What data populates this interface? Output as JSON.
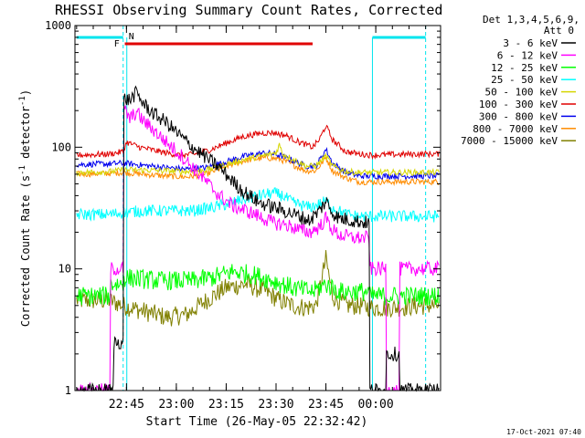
{
  "chart_data": {
    "type": "line",
    "title": "RHESSI Observing Summary Count Rates, Corrected",
    "xlabel": "Start Time (26-May-05 22:32:42)",
    "ylabel": "Corrected Count Rate (s^-1 detector^-1)",
    "ylabel_parts": [
      "Corrected Count Rate (s",
      "-1",
      " detector",
      "-1",
      ")"
    ],
    "y_scale": "log",
    "ylim": [
      1,
      1000
    ],
    "y_ticks": [
      {
        "value": 1,
        "label": "1"
      },
      {
        "value": 10,
        "label": "10"
      },
      {
        "value": 100,
        "label": "100"
      },
      {
        "value": 1000,
        "label": "1000"
      }
    ],
    "x_range_min": [
      -15.5,
      94.5
    ],
    "x_ticks": [
      {
        "value": 0,
        "label": "22:45"
      },
      {
        "value": 15,
        "label": "23:00"
      },
      {
        "value": 30,
        "label": "23:15"
      },
      {
        "value": 45,
        "label": "23:30"
      },
      {
        "value": 60,
        "label": "23:45"
      },
      {
        "value": 75,
        "label": "00:00"
      }
    ],
    "legend_header": [
      "Det 1,3,4,5,6,9,",
      "Att 0"
    ],
    "legend_position": "right",
    "markers": {
      "night_label": "N",
      "flare_label": "F",
      "night_color": "#00e5ee",
      "flare_color": "#e00000",
      "night_bars_min": [
        [
          -15,
          -1
        ],
        [
          74,
          90
        ]
      ],
      "night_dashed_lines_min": [
        -1,
        90
      ],
      "night_solid_lines_min": [
        -1,
        74
      ],
      "flare_bar_min": [
        -0.5,
        56
      ]
    },
    "timestamp": "17-Oct-2021 07:40",
    "series": [
      {
        "name": "3 - 6 keV",
        "color": "#000000",
        "points": [
          [
            -15,
            1
          ],
          [
            -4,
            1
          ],
          [
            -4,
            2.5
          ],
          [
            -1,
            2.5
          ],
          [
            -1,
            250
          ],
          [
            1,
            245
          ],
          [
            3,
            280
          ],
          [
            5,
            230
          ],
          [
            8,
            190
          ],
          [
            12,
            160
          ],
          [
            16,
            125
          ],
          [
            20,
            100
          ],
          [
            24,
            82
          ],
          [
            28,
            68
          ],
          [
            31,
            56
          ],
          [
            34,
            46
          ],
          [
            37,
            40
          ],
          [
            40,
            35
          ],
          [
            43,
            33
          ],
          [
            46,
            31
          ],
          [
            49,
            29
          ],
          [
            52,
            27
          ],
          [
            55,
            25
          ],
          [
            58,
            30
          ],
          [
            60,
            36
          ],
          [
            62,
            29
          ],
          [
            64,
            26
          ],
          [
            68,
            25
          ],
          [
            72,
            24
          ],
          [
            73,
            24
          ],
          [
            73,
            1
          ],
          [
            78,
            1
          ],
          [
            78,
            2
          ],
          [
            82,
            2
          ],
          [
            82,
            1
          ],
          [
            90,
            1
          ]
        ]
      },
      {
        "name": "6 - 12 keV",
        "color": "#ff00ff",
        "points": [
          [
            -15,
            1
          ],
          [
            -5,
            1
          ],
          [
            -5,
            10
          ],
          [
            -1,
            10
          ],
          [
            -1,
            210
          ],
          [
            1,
            170
          ],
          [
            3,
            195
          ],
          [
            5,
            165
          ],
          [
            8,
            140
          ],
          [
            12,
            110
          ],
          [
            16,
            88
          ],
          [
            20,
            68
          ],
          [
            24,
            52
          ],
          [
            28,
            40
          ],
          [
            32,
            33
          ],
          [
            36,
            30
          ],
          [
            40,
            27
          ],
          [
            44,
            24
          ],
          [
            48,
            23
          ],
          [
            52,
            21
          ],
          [
            55,
            20
          ],
          [
            58,
            22
          ],
          [
            60,
            26
          ],
          [
            62,
            21
          ],
          [
            64,
            19
          ],
          [
            68,
            18
          ],
          [
            72,
            18
          ],
          [
            73,
            18
          ],
          [
            73,
            10
          ],
          [
            78,
            10
          ],
          [
            78,
            1
          ],
          [
            82,
            1
          ],
          [
            82,
            10
          ],
          [
            90,
            10
          ]
        ]
      },
      {
        "name": "12 - 25 keV",
        "color": "#00ff00",
        "points": [
          [
            -15,
            6
          ],
          [
            -5,
            6
          ],
          [
            -5,
            7.5
          ],
          [
            -1,
            7.5
          ],
          [
            -1,
            8.5
          ],
          [
            10,
            8
          ],
          [
            20,
            8
          ],
          [
            26,
            8.5
          ],
          [
            32,
            9.5
          ],
          [
            38,
            9
          ],
          [
            44,
            8
          ],
          [
            50,
            7
          ],
          [
            56,
            6.5
          ],
          [
            60,
            7.5
          ],
          [
            64,
            6.5
          ],
          [
            70,
            6.5
          ],
          [
            73,
            6.5
          ],
          [
            73,
            6
          ],
          [
            82,
            6
          ],
          [
            90,
            6
          ]
        ]
      },
      {
        "name": "25 - 50 keV",
        "color": "#00ffff",
        "points": [
          [
            -15,
            28
          ],
          [
            -5,
            28
          ],
          [
            -1,
            29
          ],
          [
            5,
            30
          ],
          [
            12,
            30
          ],
          [
            20,
            30
          ],
          [
            26,
            32
          ],
          [
            32,
            35
          ],
          [
            36,
            38
          ],
          [
            40,
            40
          ],
          [
            44,
            42
          ],
          [
            47,
            40
          ],
          [
            50,
            35
          ],
          [
            55,
            32
          ],
          [
            58,
            34
          ],
          [
            60,
            36
          ],
          [
            62,
            32
          ],
          [
            66,
            28
          ],
          [
            70,
            27
          ],
          [
            74,
            27
          ],
          [
            80,
            27
          ],
          [
            90,
            27
          ]
        ]
      },
      {
        "name": "50 - 100 keV",
        "color": "#d6d600",
        "points": [
          [
            -15,
            62
          ],
          [
            -5,
            63
          ],
          [
            -1,
            65
          ],
          [
            5,
            65
          ],
          [
            12,
            64
          ],
          [
            18,
            63
          ],
          [
            24,
            65
          ],
          [
            30,
            72
          ],
          [
            36,
            80
          ],
          [
            42,
            86
          ],
          [
            45,
            90
          ],
          [
            46,
            105
          ],
          [
            47,
            88
          ],
          [
            50,
            80
          ],
          [
            54,
            70
          ],
          [
            57,
            70
          ],
          [
            60,
            85
          ],
          [
            62,
            70
          ],
          [
            66,
            63
          ],
          [
            70,
            62
          ],
          [
            74,
            62
          ],
          [
            80,
            62
          ],
          [
            90,
            62
          ]
        ]
      },
      {
        "name": "100 - 300 keV",
        "color": "#e00000",
        "points": [
          [
            -15,
            86
          ],
          [
            -5,
            88
          ],
          [
            -1,
            92
          ],
          [
            0,
            110
          ],
          [
            4,
            100
          ],
          [
            10,
            92
          ],
          [
            16,
            86
          ],
          [
            20,
            87
          ],
          [
            25,
            95
          ],
          [
            30,
            108
          ],
          [
            35,
            122
          ],
          [
            40,
            130
          ],
          [
            44,
            132
          ],
          [
            48,
            125
          ],
          [
            52,
            110
          ],
          [
            56,
            100
          ],
          [
            58,
            115
          ],
          [
            60,
            150
          ],
          [
            62,
            115
          ],
          [
            66,
            92
          ],
          [
            70,
            88
          ],
          [
            74,
            86
          ],
          [
            80,
            87
          ],
          [
            90,
            88
          ]
        ]
      },
      {
        "name": "300 - 800 keV",
        "color": "#0000ee",
        "points": [
          [
            -15,
            72
          ],
          [
            -5,
            73
          ],
          [
            -1,
            74
          ],
          [
            5,
            71
          ],
          [
            12,
            68
          ],
          [
            18,
            66
          ],
          [
            24,
            68
          ],
          [
            30,
            76
          ],
          [
            36,
            85
          ],
          [
            42,
            90
          ],
          [
            46,
            86
          ],
          [
            50,
            78
          ],
          [
            54,
            70
          ],
          [
            57,
            70
          ],
          [
            60,
            96
          ],
          [
            62,
            74
          ],
          [
            66,
            62
          ],
          [
            70,
            58
          ],
          [
            74,
            58
          ],
          [
            80,
            58
          ],
          [
            90,
            58
          ]
        ]
      },
      {
        "name": "800 - 7000 keV",
        "color": "#ff8c00",
        "points": [
          [
            -15,
            60
          ],
          [
            -5,
            61
          ],
          [
            -1,
            62
          ],
          [
            5,
            60
          ],
          [
            12,
            58
          ],
          [
            18,
            57
          ],
          [
            24,
            60
          ],
          [
            30,
            70
          ],
          [
            36,
            78
          ],
          [
            42,
            82
          ],
          [
            46,
            80
          ],
          [
            50,
            72
          ],
          [
            54,
            64
          ],
          [
            57,
            64
          ],
          [
            60,
            82
          ],
          [
            62,
            64
          ],
          [
            66,
            56
          ],
          [
            70,
            52
          ],
          [
            74,
            52
          ],
          [
            80,
            52
          ],
          [
            90,
            52
          ]
        ]
      },
      {
        "name": "7000 - 15000 keV",
        "color": "#808000",
        "points": [
          [
            -15,
            5.5
          ],
          [
            -5,
            5.5
          ],
          [
            -1,
            5
          ],
          [
            5,
            4.5
          ],
          [
            12,
            4
          ],
          [
            18,
            4.2
          ],
          [
            24,
            5.5
          ],
          [
            30,
            7
          ],
          [
            36,
            7.5
          ],
          [
            42,
            6.5
          ],
          [
            46,
            5.5
          ],
          [
            50,
            5
          ],
          [
            54,
            4.8
          ],
          [
            57,
            5
          ],
          [
            60,
            12
          ],
          [
            62,
            6
          ],
          [
            66,
            5
          ],
          [
            70,
            5
          ],
          [
            74,
            4.8
          ],
          [
            80,
            4.8
          ],
          [
            90,
            5
          ]
        ]
      }
    ]
  }
}
